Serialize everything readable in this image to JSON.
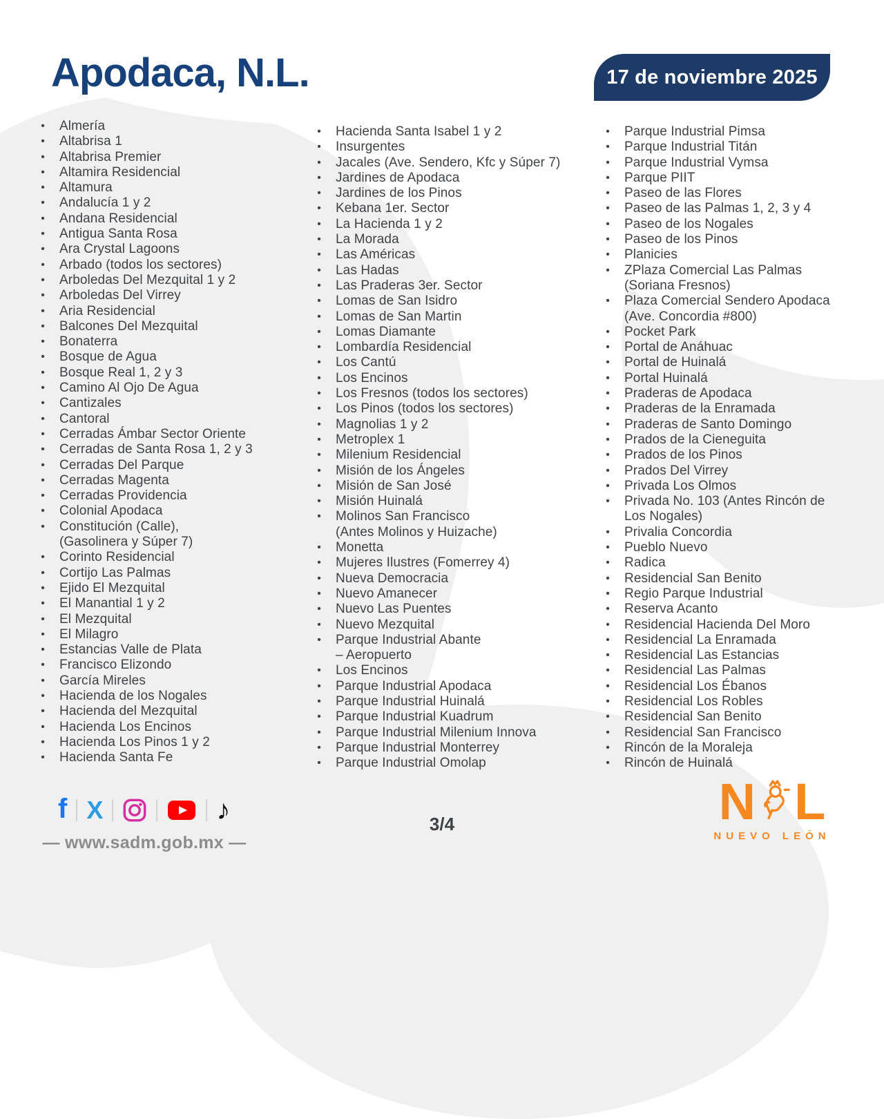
{
  "header": {
    "title": "Apodaca, N.L.",
    "date_badge": "17 de noviembre 2025"
  },
  "columns": [
    {
      "items": [
        "Almería",
        "Altabrisa 1",
        "Altabrisa Premier",
        "Altamira Residencial",
        "Altamura",
        "Andalucía 1 y 2",
        "Andana Residencial",
        "Antigua Santa Rosa",
        "Ara Crystal Lagoons",
        "Arbado (todos los sectores)",
        "Arboledas Del Mezquital 1 y 2",
        "Arboledas Del Virrey",
        "Aria Residencial",
        "Balcones Del Mezquital",
        "Bonaterra",
        "Bosque de Agua",
        "Bosque Real 1, 2 y 3",
        "Camino Al Ojo De Agua",
        "Cantizales",
        "Cantoral",
        "Cerradas Ámbar Sector Oriente",
        "Cerradas de Santa Rosa 1, 2 y 3",
        "Cerradas Del Parque",
        "Cerradas Magenta",
        "Cerradas Providencia",
        "Colonial Apodaca",
        "Constitución (Calle),\n (Gasolinera y Súper 7)",
        "Corinto Residencial",
        "Cortijo Las Palmas",
        "Ejido El Mezquital",
        "El Manantial 1 y 2",
        "El Mezquital",
        "El Milagro",
        "Estancias Valle de Plata",
        "Francisco Elizondo",
        "García Mireles",
        "Hacienda de los Nogales",
        "Hacienda del Mezquital",
        "Hacienda Los Encinos",
        "Hacienda Los Pinos 1 y 2",
        "Hacienda Santa Fe"
      ]
    },
    {
      "items": [
        "Hacienda Santa Isabel 1 y 2",
        "Insurgentes",
        "Jacales (Ave. Sendero, Kfc y Súper 7)",
        "Jardines de Apodaca",
        "Jardines de los Pinos",
        "Kebana 1er. Sector",
        "La Hacienda 1 y 2",
        "La Morada",
        "Las Américas",
        "Las Hadas",
        "Las Praderas 3er. Sector",
        "Lomas de San Isidro",
        "Lomas de San Martin",
        "Lomas Diamante",
        "Lombardía Residencial",
        "Los Cantú",
        "Los Encinos",
        "Los Fresnos (todos los sectores)",
        "Los Pinos (todos los sectores)",
        "Magnolias 1 y 2",
        "Metroplex 1",
        "Milenium Residencial",
        "Misión de los Ángeles",
        "Misión de San José",
        "Misión Huinalá",
        "Molinos San Francisco\n(Antes Molinos y Huizache)",
        "Monetta",
        "Mujeres Ilustres (Fomerrey 4)",
        "Nueva Democracia",
        "Nuevo Amanecer",
        "Nuevo Las Puentes",
        "Nuevo Mezquital",
        "Parque Industrial Abante\n– Aeropuerto",
        "Los Encinos",
        "Parque Industrial Apodaca",
        "Parque Industrial Huinalá",
        "Parque Industrial Kuadrum",
        "Parque Industrial Milenium Innova",
        "Parque Industrial Monterrey",
        "Parque Industrial Omolap"
      ]
    },
    {
      "items": [
        "Parque Industrial Pimsa",
        "Parque Industrial Titán",
        "Parque Industrial Vymsa",
        "Parque PIIT",
        "Paseo de las Flores",
        "Paseo de las Palmas 1, 2, 3 y 4",
        "Paseo de los Nogales",
        "Paseo de los Pinos",
        "Planicies",
        "ZPlaza Comercial Las Palmas\n(Soriana Fresnos)",
        "Plaza Comercial Sendero Apodaca\n(Ave. Concordia #800)",
        "Pocket Park",
        "Portal de Anáhuac",
        "Portal de Huinalá",
        "Portal Huinalá",
        "Praderas de Apodaca",
        "Praderas de la Enramada",
        "Praderas de Santo Domingo",
        "Prados de la Cieneguita",
        "Prados de los Pinos",
        "Prados Del Virrey",
        "Privada Los Olmos",
        "Privada No. 103 (Antes Rincón de\nLos Nogales)",
        "Privalia Concordia",
        "Pueblo Nuevo",
        "Radica",
        "Residencial San Benito",
        "Regio Parque Industrial",
        "Reserva Acanto",
        "Residencial Hacienda Del Moro",
        "Residencial La Enramada",
        "Residencial Las Estancias",
        "Residencial Las Palmas",
        "Residencial Los Ébanos",
        "Residencial Los Robles",
        "Residencial San Benito",
        "Residencial San Francisco",
        "Rincón de la Moraleja",
        "Rincón de Huinalá"
      ]
    }
  ],
  "footer": {
    "website": "— www.sadm.gob.mx —",
    "page_indicator": "3/4",
    "social_icons": [
      "facebook",
      "x-twitter",
      "instagram",
      "youtube",
      "tiktok"
    ]
  },
  "logo": {
    "letter_n": "N",
    "letter_l": "L",
    "subtitle": "NUEVO LEÓN"
  },
  "colors": {
    "title_navy": "#17417a",
    "badge_navy": "#1e3a66",
    "list_text": "#3f4245",
    "brand_orange": "#f6881f",
    "website_gray": "#8c8c8c",
    "facebook_blue": "#1877f2",
    "x_blue": "#2e9be6",
    "instagram_magenta": "#d62da0",
    "youtube_red": "#ff0000",
    "tiktok_black": "#0f0f0f"
  }
}
